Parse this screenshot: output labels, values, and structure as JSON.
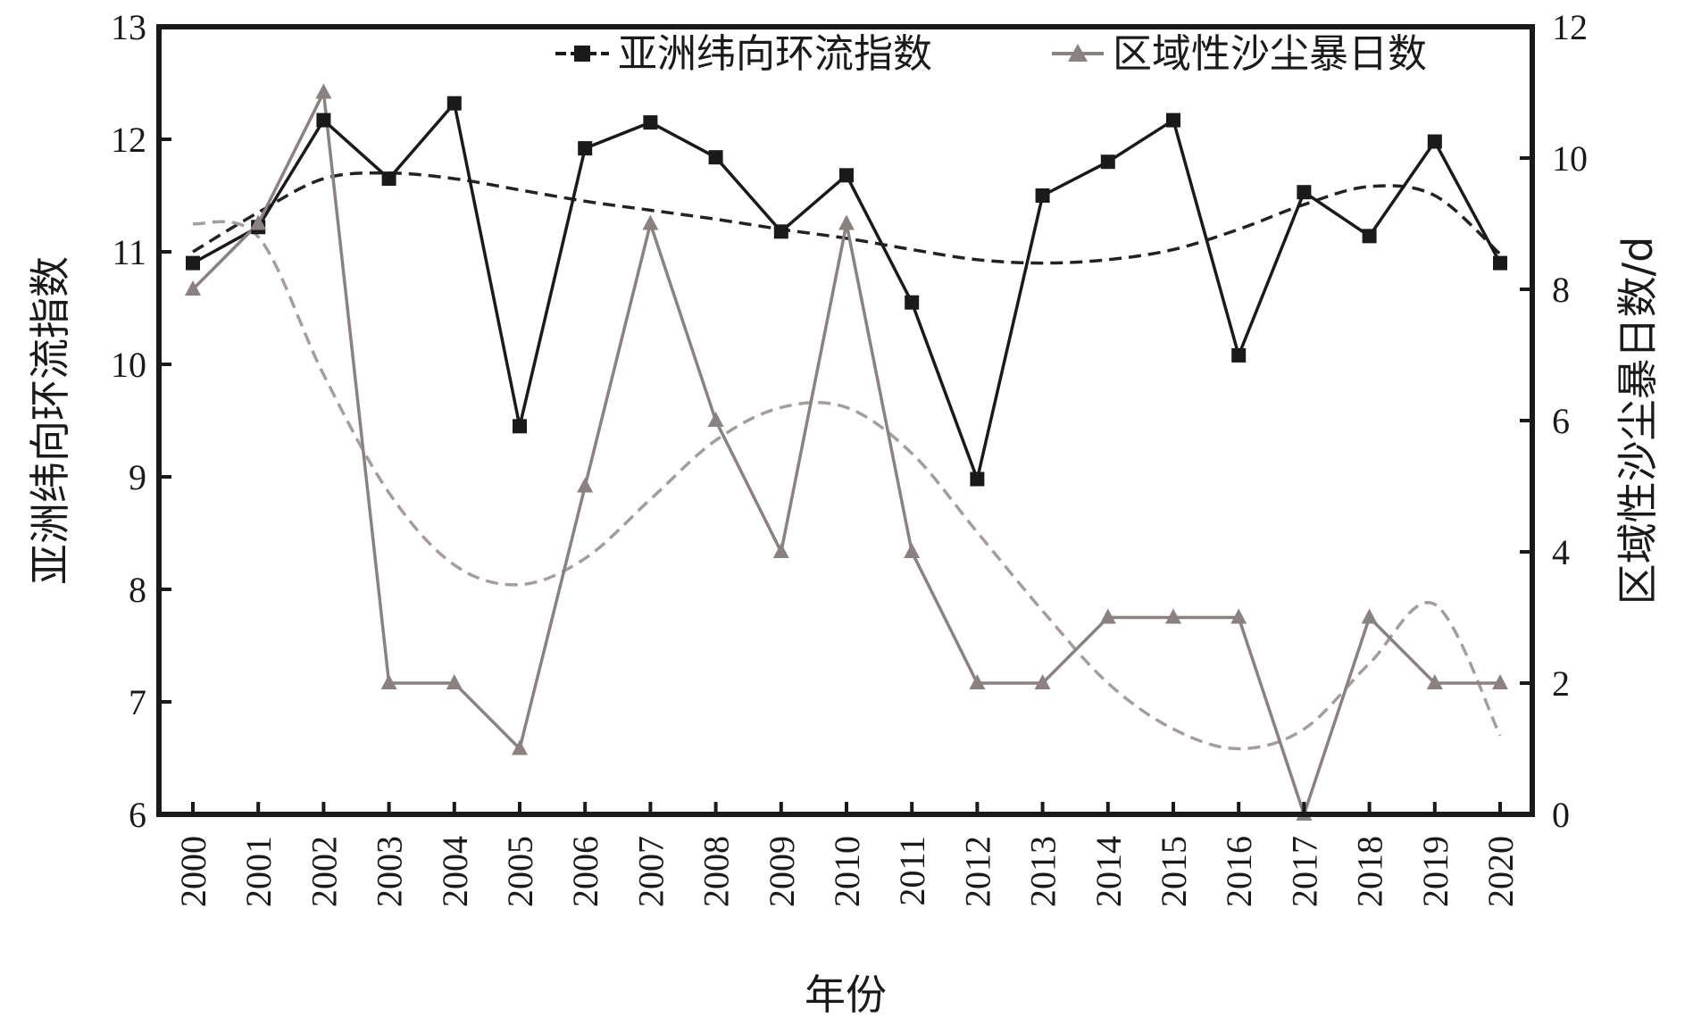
{
  "chart_data": {
    "type": "line",
    "title": "",
    "xlabel": "年份",
    "ylabel_left": "亚洲纬向环流指数",
    "ylabel_right": "区域性沙尘暴日数/d",
    "categories": [
      "2000",
      "2001",
      "2002",
      "2003",
      "2004",
      "2005",
      "2006",
      "2007",
      "2008",
      "2009",
      "2010",
      "2011",
      "2012",
      "2013",
      "2014",
      "2015",
      "2016",
      "2017",
      "2018",
      "2019",
      "2020"
    ],
    "ylim_left": [
      6,
      13
    ],
    "yticks_left": [
      "6",
      "7",
      "8",
      "9",
      "10",
      "11",
      "12",
      "13"
    ],
    "ylim_right": [
      0,
      12
    ],
    "yticks_right": [
      "0",
      "2",
      "4",
      "6",
      "8",
      "10",
      "12"
    ],
    "legend_position": "top-right",
    "grid": false,
    "series": [
      {
        "name": "亚洲纬向环流指数",
        "axis": "left",
        "color": "#1a1a1a",
        "marker": "square",
        "values": [
          10.9,
          11.22,
          12.17,
          11.65,
          12.32,
          9.45,
          11.92,
          12.15,
          11.84,
          11.18,
          11.68,
          10.55,
          8.98,
          11.5,
          11.8,
          12.17,
          10.08,
          11.53,
          11.14,
          11.98,
          10.9
        ],
        "trend": [
          11.0,
          11.35,
          11.65,
          11.7,
          11.65,
          11.55,
          11.45,
          11.37,
          11.29,
          11.2,
          11.12,
          11.02,
          10.93,
          10.9,
          10.93,
          11.02,
          11.2,
          11.42,
          11.58,
          11.5,
          10.98
        ]
      },
      {
        "name": "区域性沙尘暴日数",
        "axis": "right",
        "color": "#8a8180",
        "marker": "triangle",
        "values": [
          8,
          9,
          11,
          2,
          2,
          1,
          5,
          9,
          6,
          4,
          9,
          4,
          2,
          2,
          3,
          3,
          3,
          0,
          3,
          2,
          2
        ],
        "trend": [
          9.0,
          8.8,
          6.7,
          4.9,
          3.8,
          3.5,
          3.9,
          4.8,
          5.7,
          6.2,
          6.2,
          5.5,
          4.3,
          3.1,
          2.0,
          1.3,
          1.0,
          1.3,
          2.3,
          3.2,
          1.2
        ]
      }
    ]
  }
}
